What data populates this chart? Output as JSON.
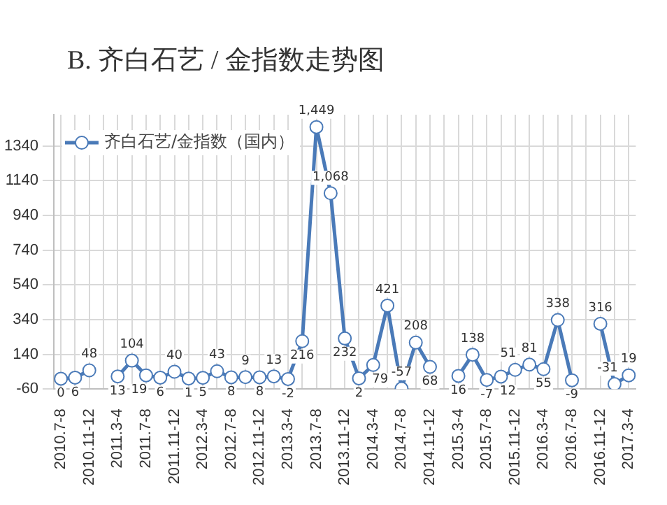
{
  "chart_data": {
    "type": "line",
    "title": "B. 齐白石艺 / 金指数走势图",
    "categories": [
      "2010.7-8",
      null,
      "2010.11-12",
      null,
      "2011.3-4",
      null,
      "2011.7-8",
      null,
      "2011.11-12",
      null,
      "2012.3-4",
      null,
      "2012.7-8",
      null,
      "2012.11-12",
      null,
      "2013.3-4",
      null,
      "2013.7-8",
      null,
      "2013.11-12",
      null,
      "2014.3-4",
      null,
      "2014.7-8",
      null,
      "2014.11-12",
      null,
      "2015.3-4",
      null,
      "2015.7-8",
      null,
      "2015.11-12",
      null,
      "2016.3-4",
      null,
      "2016.7-8",
      null,
      "2016.11-12",
      null,
      "2017.3-4"
    ],
    "series": [
      {
        "name": "齐白石艺/金指数（国内）",
        "color": "#4a7ab8",
        "values": [
          0,
          6,
          48,
          null,
          13,
          104,
          19,
          6,
          40,
          1,
          5,
          43,
          8,
          9,
          8,
          13,
          -2,
          216,
          1449,
          1068,
          232,
          2,
          79,
          421,
          -57,
          208,
          68,
          null,
          16,
          138,
          -7,
          12,
          51,
          81,
          55,
          338,
          -9,
          null,
          316,
          -31,
          19
        ],
        "value_labels": [
          "0",
          "6",
          "48",
          null,
          "13",
          "104",
          "19",
          "6",
          "40",
          "1",
          "5",
          "43",
          "8",
          "9",
          "8",
          "13",
          "-2",
          "216",
          "1,449",
          "1,068",
          "232",
          "2",
          "79",
          "421",
          "-57",
          "208",
          "68",
          null,
          "16",
          "138",
          "-7",
          "12",
          "51",
          "81",
          "55",
          "338",
          "-9",
          null,
          "316",
          "-31",
          "19"
        ]
      }
    ],
    "ylim": [
      -60,
      1520
    ],
    "yticks": [
      -60,
      140,
      340,
      540,
      740,
      940,
      1140,
      1340
    ],
    "grid": true,
    "legend": "top left",
    "marker": "circle",
    "line_style": "solid"
  }
}
